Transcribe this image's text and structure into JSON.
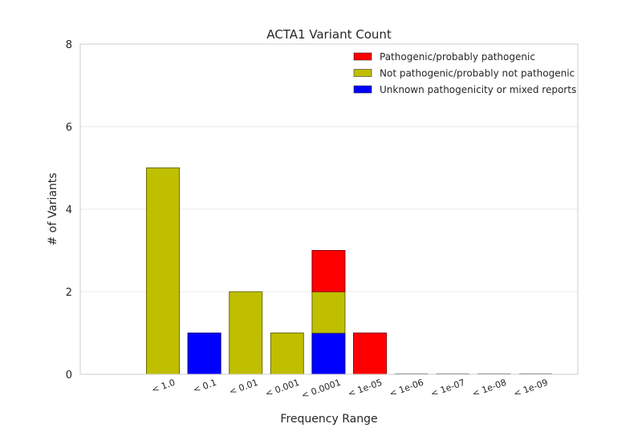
{
  "chart_data": {
    "type": "bar",
    "stacked": true,
    "title": "ACTA1 Variant Count",
    "xlabel": "Frequency Range",
    "ylabel": "# of Variants",
    "categories": [
      "< 1.0",
      "< 0.1",
      "< 0.01",
      "< 0.001",
      "< 0.0001",
      "< 1e-05",
      "< 1e-06",
      "< 1e-07",
      "< 1e-08",
      "< 1e-09"
    ],
    "ylim": [
      0,
      8
    ],
    "yticks": [
      "0",
      "2",
      "4",
      "6",
      "8"
    ],
    "grid": "horizontal",
    "legend_position": "top-right",
    "series": [
      {
        "name": "Unknown pathogenicity or mixed reports",
        "color": "#0000ff",
        "values": [
          0,
          1,
          0,
          0,
          1,
          0,
          0,
          0,
          0,
          0
        ]
      },
      {
        "name": "Not pathogenic/probably not pathogenic",
        "color": "#bfbf00",
        "values": [
          5,
          0,
          2,
          1,
          1,
          0,
          0,
          0,
          0,
          0
        ]
      },
      {
        "name": "Pathogenic/probably pathogenic",
        "color": "#ff0000",
        "values": [
          0,
          0,
          0,
          0,
          1,
          1,
          0,
          0,
          0,
          0
        ]
      }
    ],
    "legend_order": [
      "Pathogenic/probably pathogenic",
      "Not pathogenic/probably not pathogenic",
      "Unknown pathogenicity or mixed reports"
    ]
  }
}
